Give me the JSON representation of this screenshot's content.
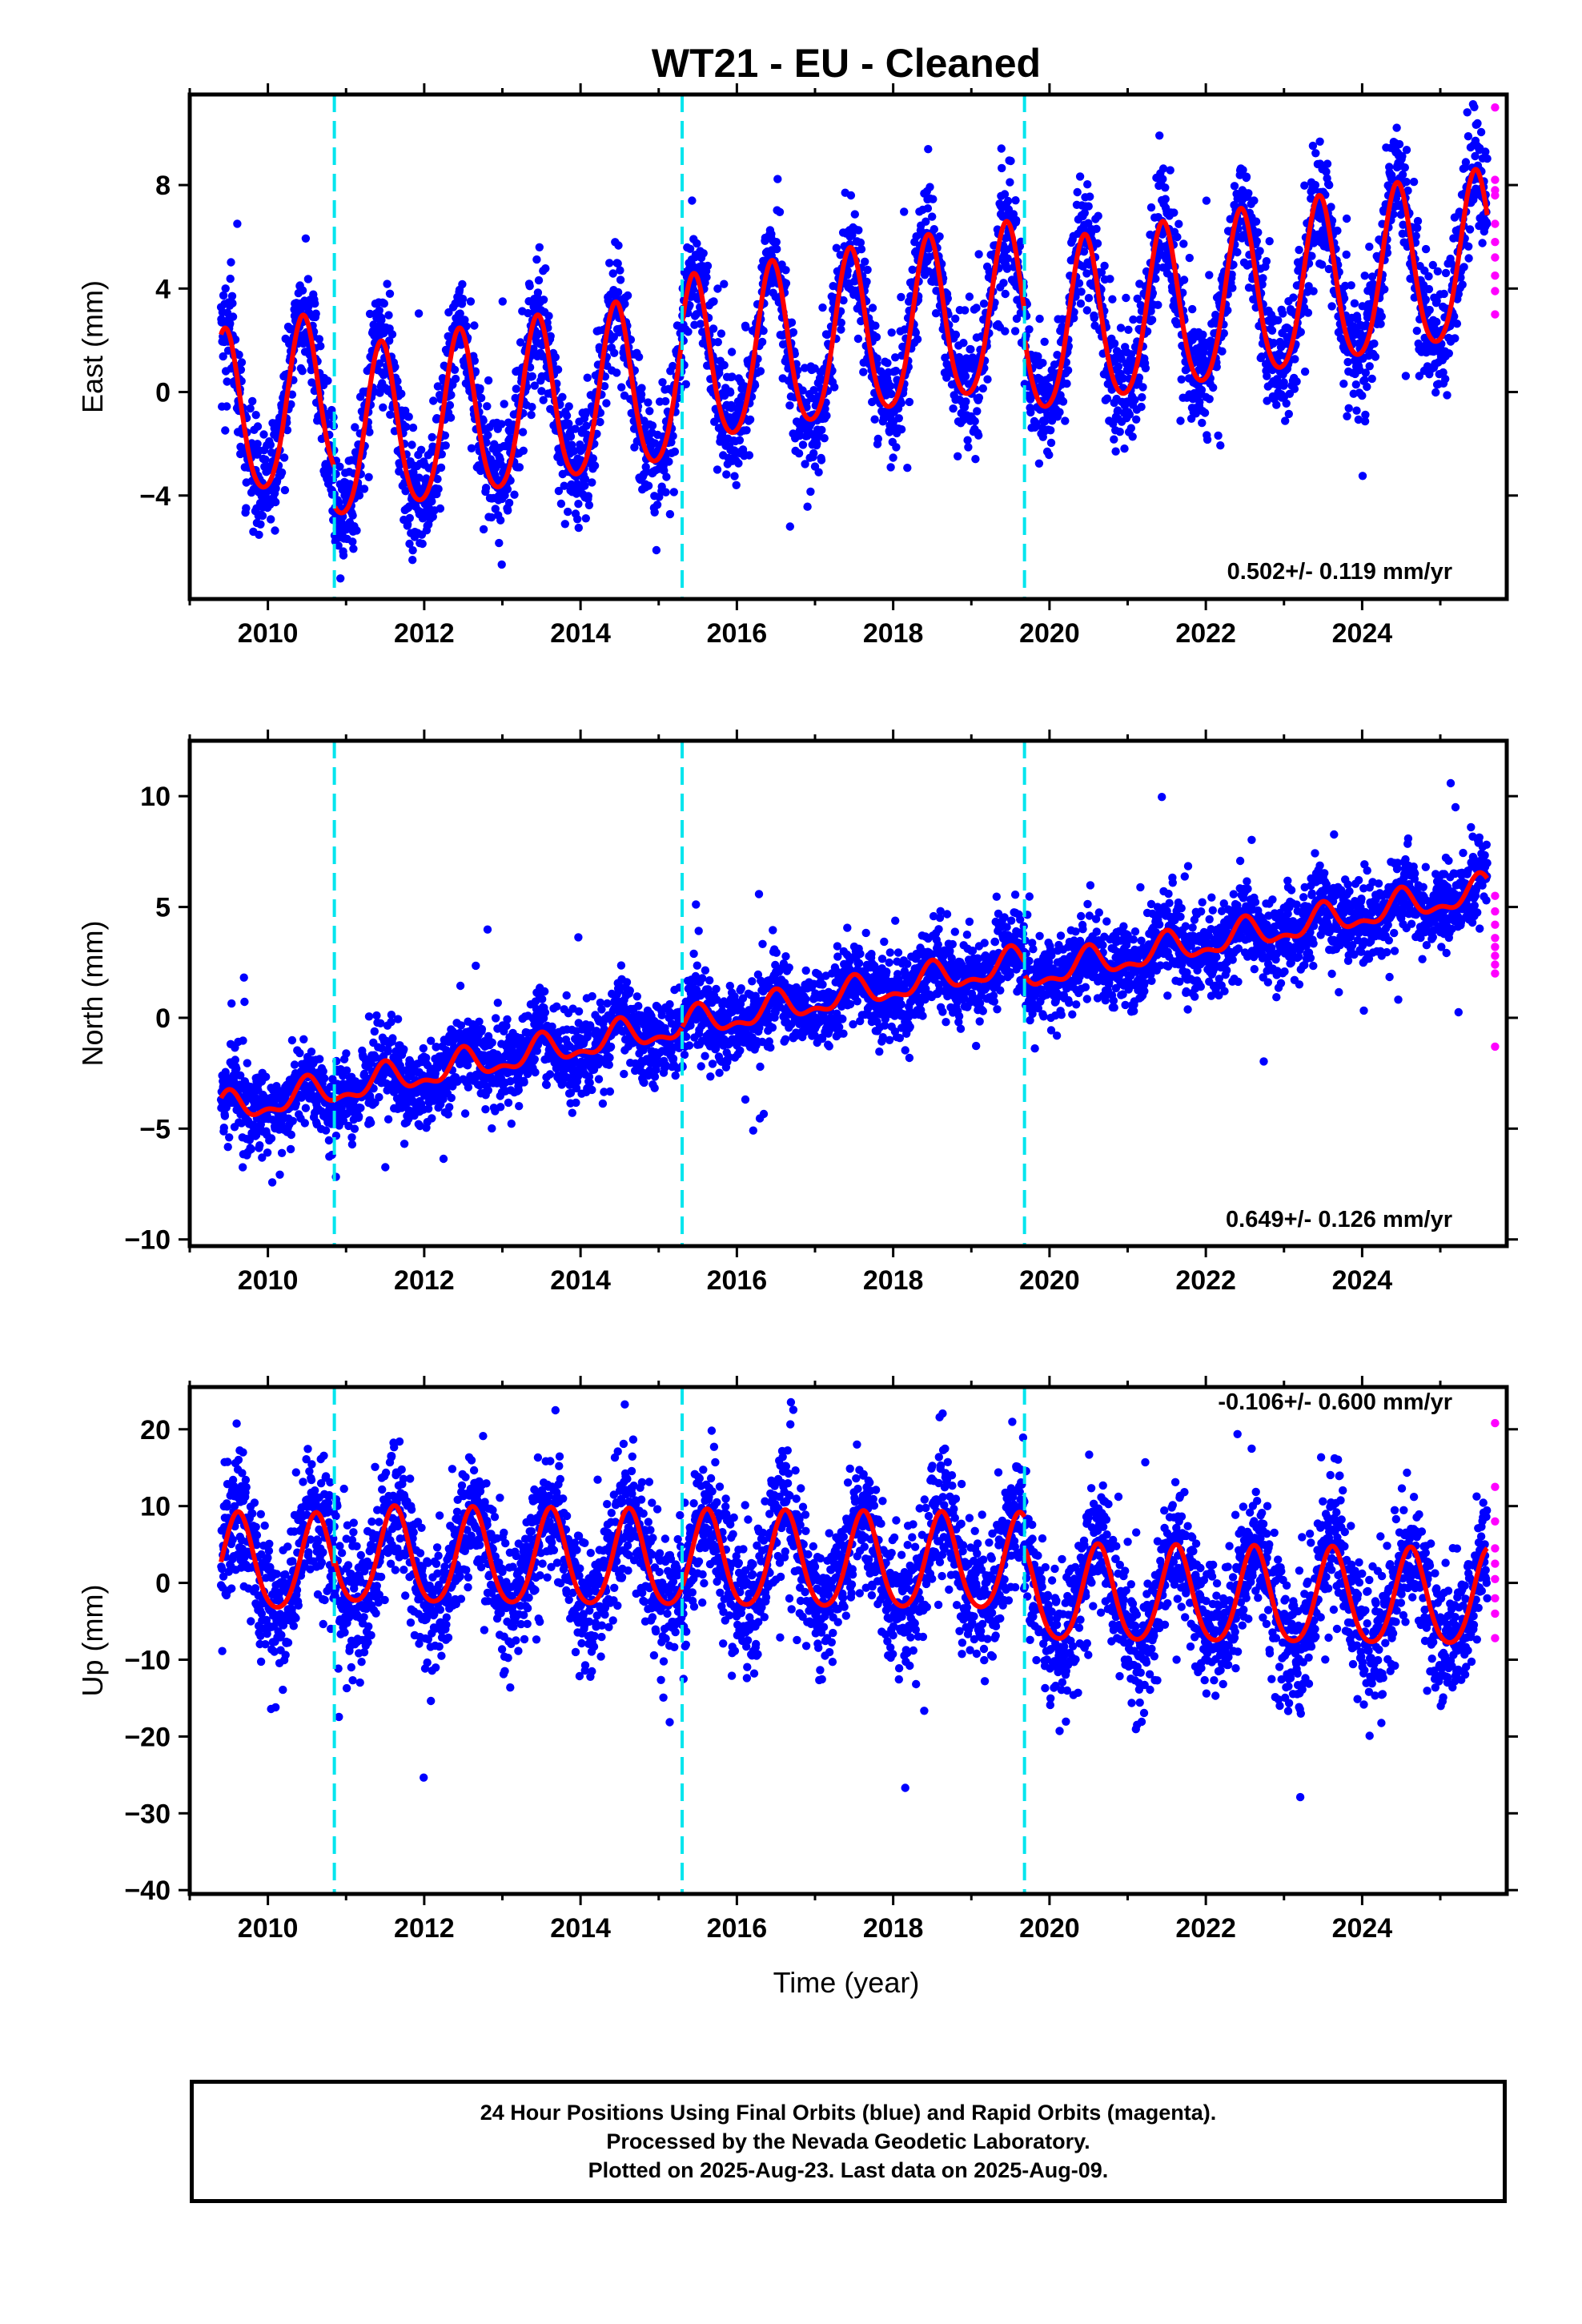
{
  "title": "WT21  - EU - Cleaned",
  "xlabel": "Time (year)",
  "caption": [
    "24 Hour Positions Using Final Orbits (blue) and Rapid Orbits (magenta).",
    "Processed by the Nevada Geodetic Laboratory.",
    "Plotted on 2025-Aug-23. Last data on 2025-Aug-09."
  ],
  "colors": {
    "final": "#0000ff",
    "rapid": "#ff00ff",
    "fit": "#ff0000",
    "events": "#00e5ee"
  },
  "chart_data": [
    {
      "type": "scatter",
      "ylabel": "East (mm)",
      "rate_label": "0.502+/- 0.119 mm/yr",
      "xlim": [
        2009.0,
        2025.85
      ],
      "ylim": [
        -8.0,
        11.5
      ],
      "xticks": [
        2010,
        2012,
        2014,
        2016,
        2018,
        2020,
        2022,
        2024
      ],
      "xtick_labels": [
        "2010",
        "2012",
        "2014",
        "2016",
        "2018",
        "2020",
        "2022",
        "2024"
      ],
      "yticks": [
        -4,
        0,
        4,
        8
      ],
      "ytick_labels": [
        "−4",
        "0",
        "4",
        "8"
      ],
      "event_lines": [
        2010.85,
        2015.3,
        2019.68
      ],
      "data_start": 2009.4,
      "data_end": 2025.6,
      "fit": {
        "offset": -1.15,
        "rate_mm_per_yr": 0.502,
        "annual_amplitude": 3.2,
        "peak_phase": 0.45,
        "semiannual_amplitude": 0.4,
        "step_dates": [
          2010.85,
          2015.3,
          2019.68
        ],
        "step_sizes": [
          -1.5,
          0.6,
          -1.0
        ]
      },
      "noise_sd": 1.1,
      "rapid_points": [
        11.0,
        8.2,
        7.8,
        7.6,
        6.5,
        5.8,
        5.2,
        4.5,
        3.9,
        3.0
      ]
    },
    {
      "type": "scatter",
      "ylabel": "North (mm)",
      "rate_label": "0.649+/- 0.126 mm/yr",
      "xlim": [
        2009.0,
        2025.85
      ],
      "ylim": [
        -10.3,
        12.5
      ],
      "xticks": [
        2010,
        2012,
        2014,
        2016,
        2018,
        2020,
        2022,
        2024
      ],
      "xtick_labels": [
        "2010",
        "2012",
        "2014",
        "2016",
        "2018",
        "2020",
        "2022",
        "2024"
      ],
      "yticks": [
        -10,
        -5,
        0,
        5,
        10
      ],
      "ytick_labels": [
        "−10",
        "−5",
        "0",
        "5",
        "10"
      ],
      "event_lines": [
        2010.85,
        2015.3,
        2019.68
      ],
      "data_start": 2009.4,
      "data_end": 2025.6,
      "fit": {
        "offset": -4.2,
        "rate_mm_per_yr": 0.649,
        "annual_amplitude": 0.6,
        "peak_phase": 0.5,
        "semiannual_amplitude": 0.3,
        "step_dates": [
          2010.85,
          2015.3,
          2019.68
        ],
        "step_sizes": [
          0.0,
          0.0,
          -0.6
        ]
      },
      "noise_sd": 0.9,
      "rapid_points": [
        5.5,
        4.8,
        4.2,
        3.6,
        3.2,
        2.8,
        2.4,
        2.0,
        -1.3
      ]
    },
    {
      "type": "scatter",
      "ylabel": "Up (mm)",
      "rate_label": "-0.106+/- 0.600 mm/yr",
      "xlim": [
        2009.0,
        2025.85
      ],
      "ylim": [
        -40.5,
        25.5
      ],
      "xticks": [
        2010,
        2012,
        2014,
        2016,
        2018,
        2020,
        2022,
        2024
      ],
      "xtick_labels": [
        "2010",
        "2012",
        "2014",
        "2016",
        "2018",
        "2020",
        "2022",
        "2024"
      ],
      "yticks": [
        -40,
        -30,
        -20,
        -10,
        0,
        10,
        20
      ],
      "ytick_labels": [
        "−40",
        "−30",
        "−20",
        "−10",
        "0",
        "10",
        "20"
      ],
      "event_lines": [
        2010.85,
        2015.3,
        2019.68
      ],
      "data_start": 2009.4,
      "data_end": 2025.6,
      "fit": {
        "offset": 2.3,
        "rate_mm_per_yr": -0.106,
        "annual_amplitude": 6.2,
        "peak_phase": 0.62,
        "semiannual_amplitude": 0.8,
        "step_dates": [
          2010.85,
          2015.3,
          2019.68
        ],
        "step_sizes": [
          1.0,
          0.0,
          -4.0
        ]
      },
      "noise_sd": 4.3,
      "rapid_points": [
        20.8,
        12.5,
        8.0,
        4.5,
        2.5,
        0.5,
        -2.0,
        -4.0,
        -7.2
      ]
    }
  ]
}
